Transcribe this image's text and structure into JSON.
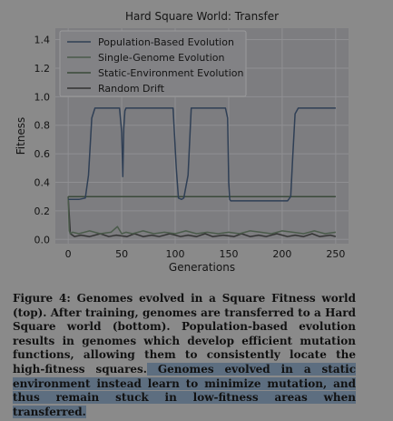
{
  "figure": {
    "chart_data": {
      "type": "line",
      "title": "Hard Square World: Transfer",
      "xlabel": "Generations",
      "ylabel": "Fitness",
      "xlim": [
        -12,
        262
      ],
      "ylim": [
        -0.03,
        1.48
      ],
      "xticks": [
        0,
        50,
        100,
        150,
        200,
        250
      ],
      "yticks": [
        0.0,
        0.2,
        0.4,
        0.6,
        0.8,
        1.0,
        1.2,
        1.4
      ],
      "ytick_labels": [
        "0.0",
        "0.2",
        "0.4",
        "0.6",
        "0.8",
        "1.0",
        "1.2",
        "1.4"
      ],
      "grid": true,
      "legend_position": "top-left",
      "series": [
        {
          "name": "Population-Based Evolution",
          "color": "#2f3f55",
          "x": [
            0,
            2,
            5,
            10,
            16,
            19,
            22,
            25,
            30,
            40,
            48,
            50,
            51,
            52,
            53,
            54,
            57,
            60,
            70,
            80,
            90,
            98,
            101,
            103,
            106,
            108,
            112,
            115,
            120,
            130,
            140,
            147,
            149,
            150,
            151,
            152,
            160,
            170,
            180,
            190,
            200,
            205,
            208,
            210,
            212,
            215,
            220,
            230,
            240,
            250
          ],
          "y": [
            0.28,
            0.28,
            0.28,
            0.28,
            0.29,
            0.45,
            0.85,
            0.92,
            0.92,
            0.92,
            0.92,
            0.75,
            0.44,
            0.78,
            0.9,
            0.92,
            0.92,
            0.92,
            0.92,
            0.92,
            0.92,
            0.92,
            0.5,
            0.29,
            0.28,
            0.29,
            0.45,
            0.92,
            0.92,
            0.92,
            0.92,
            0.92,
            0.85,
            0.4,
            0.28,
            0.27,
            0.27,
            0.27,
            0.27,
            0.27,
            0.27,
            0.27,
            0.3,
            0.6,
            0.88,
            0.92,
            0.92,
            0.92,
            0.92,
            0.92
          ]
        },
        {
          "name": "Single-Genome Evolution",
          "color": "#4b5b4b",
          "x": [
            0,
            1,
            2,
            4,
            10,
            20,
            30,
            40,
            46,
            50,
            54,
            60,
            70,
            80,
            90,
            100,
            110,
            120,
            130,
            140,
            150,
            160,
            170,
            180,
            190,
            200,
            210,
            220,
            230,
            240,
            250
          ],
          "y": [
            0.3,
            0.06,
            0.04,
            0.05,
            0.04,
            0.06,
            0.04,
            0.05,
            0.09,
            0.04,
            0.05,
            0.04,
            0.06,
            0.04,
            0.05,
            0.04,
            0.06,
            0.04,
            0.05,
            0.04,
            0.05,
            0.04,
            0.06,
            0.05,
            0.04,
            0.06,
            0.05,
            0.04,
            0.06,
            0.04,
            0.05
          ]
        },
        {
          "name": "Static-Environment Evolution",
          "color": "#3a4a3a",
          "x": [
            0,
            250
          ],
          "y": [
            0.3,
            0.3
          ]
        },
        {
          "name": "Random Drift",
          "color": "#333333",
          "x": [
            0,
            2,
            6,
            12,
            20,
            30,
            38,
            45,
            55,
            62,
            70,
            78,
            85,
            95,
            105,
            112,
            120,
            128,
            135,
            145,
            155,
            162,
            170,
            178,
            185,
            195,
            205,
            212,
            220,
            228,
            235,
            245,
            250
          ],
          "y": [
            0.3,
            0.04,
            0.02,
            0.03,
            0.02,
            0.04,
            0.02,
            0.03,
            0.02,
            0.04,
            0.02,
            0.03,
            0.02,
            0.04,
            0.02,
            0.03,
            0.02,
            0.04,
            0.02,
            0.03,
            0.02,
            0.04,
            0.02,
            0.03,
            0.02,
            0.04,
            0.02,
            0.03,
            0.02,
            0.04,
            0.02,
            0.03,
            0.02
          ]
        }
      ]
    }
  },
  "caption": {
    "label": "Figure 4:",
    "text_plain": " Genomes evolved in a Square Fitness world (top). After training, genomes are transferred to a Hard Square world (bottom). Population-based evolution results in genomes which develop efficient mutation functions, allowing them to consistently locate the high-fitness squares.",
    "text_highlighted": " Genomes evolved in a static environment instead learn to minimize mutation, and thus remain stuck in low-fitness areas when transferred.",
    "highlight_color": "#5d6e80"
  }
}
